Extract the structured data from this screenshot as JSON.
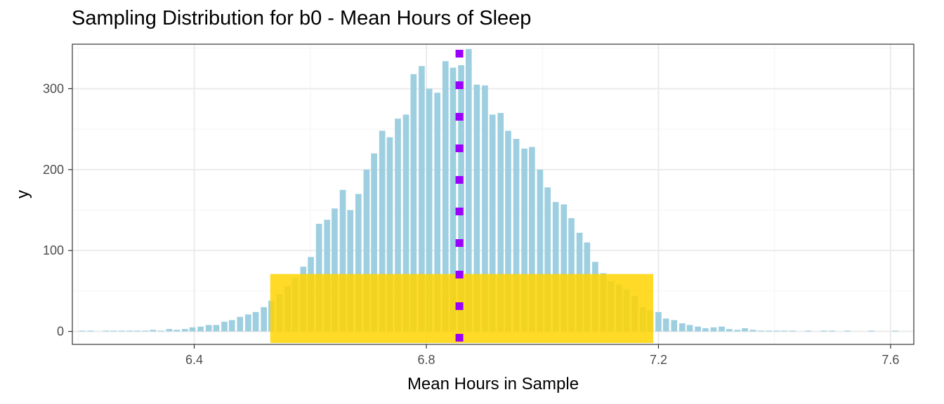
{
  "chart_data": {
    "type": "bar",
    "title": "Sampling Distribution for b0 - Mean Hours of Sleep",
    "xlabel": "Mean Hours in Sample",
    "ylabel": "y",
    "xlim": [
      6.19,
      7.64
    ],
    "ylim": [
      -16,
      355
    ],
    "x_ticks": [
      6.4,
      6.8,
      7.2,
      7.6
    ],
    "y_ticks": [
      0,
      100,
      200,
      300
    ],
    "grid": true,
    "bar_width": 0.0105,
    "colors": {
      "bars": "#9ecfe0",
      "highlight": "#ffd300",
      "mean_line": "#9b00ff",
      "grid_major": "#ebebeb",
      "grid_minor": "#f4f4f4",
      "panel_border": "#333333"
    },
    "series": [
      {
        "x": [
          6.207,
          6.221,
          6.234,
          6.248,
          6.261,
          6.275,
          6.289,
          6.302,
          6.316,
          6.329,
          6.343,
          6.357,
          6.37,
          6.384,
          6.397,
          6.411,
          6.425,
          6.438,
          6.452,
          6.465,
          6.479,
          6.493,
          6.506,
          6.52,
          6.533,
          6.547,
          6.561,
          6.574,
          6.588,
          6.601,
          6.615,
          6.629,
          6.642,
          6.656,
          6.669,
          6.683,
          6.697,
          6.71,
          6.724,
          6.737,
          6.751,
          6.765,
          6.778,
          6.792,
          6.805,
          6.819,
          6.833,
          6.846,
          6.86,
          6.873,
          6.887,
          6.901,
          6.914,
          6.928,
          6.941,
          6.955,
          6.969,
          6.982,
          6.996,
          7.009,
          7.023,
          7.037,
          7.05,
          7.064,
          7.077,
          7.091,
          7.105,
          7.118,
          7.132,
          7.145,
          7.159,
          7.173,
          7.186,
          7.2,
          7.213,
          7.227,
          7.241,
          7.254,
          7.268,
          7.281,
          7.295,
          7.309,
          7.322,
          7.336,
          7.349,
          7.363,
          7.377,
          7.39,
          7.404,
          7.417,
          7.431,
          7.445,
          7.458,
          7.472,
          7.485,
          7.499,
          7.513,
          7.526,
          7.54,
          7.553,
          7.567,
          7.581,
          7.594,
          7.608
        ],
        "y": [
          1,
          1,
          0,
          1,
          1,
          1,
          1,
          1,
          1,
          2,
          1,
          3,
          2,
          3,
          5,
          6,
          8,
          8,
          12,
          14,
          18,
          21,
          24,
          30,
          38,
          46,
          56,
          66,
          80,
          92,
          133,
          138,
          152,
          175,
          150,
          170,
          200,
          220,
          248,
          240,
          263,
          268,
          318,
          328,
          300,
          295,
          334,
          326,
          329,
          349,
          305,
          304,
          268,
          270,
          248,
          238,
          226,
          228,
          200,
          178,
          160,
          157,
          140,
          122,
          110,
          86,
          72,
          62,
          58,
          52,
          44,
          30,
          26,
          24,
          16,
          14,
          10,
          8,
          6,
          4,
          5,
          6,
          3,
          2,
          4,
          2,
          1,
          1,
          1,
          1,
          1,
          0,
          1,
          0,
          1,
          1,
          0,
          1,
          0,
          0,
          1,
          0,
          0,
          1
        ]
      }
    ],
    "highlight_interval": {
      "x_start": 6.531,
      "x_end": 7.191,
      "y_height": 71
    },
    "mean_line": {
      "x": 6.857
    }
  }
}
